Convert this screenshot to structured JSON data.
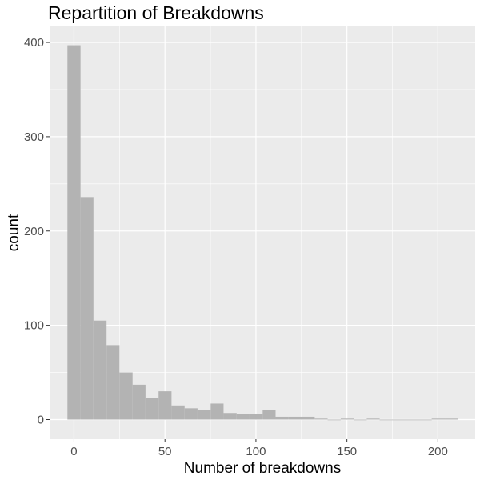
{
  "chart_data": {
    "type": "bar",
    "title": "Repartition of Breakdowns",
    "xlabel": "Number of breakdowns",
    "ylabel": "count",
    "bin_width": 7.15,
    "bins": [
      {
        "start": -3.6,
        "end": 3.6,
        "count": 397
      },
      {
        "start": 3.6,
        "end": 10.7,
        "count": 236
      },
      {
        "start": 10.7,
        "end": 17.9,
        "count": 105
      },
      {
        "start": 17.9,
        "end": 25.0,
        "count": 79
      },
      {
        "start": 25.0,
        "end": 32.2,
        "count": 50
      },
      {
        "start": 32.2,
        "end": 39.3,
        "count": 37
      },
      {
        "start": 39.3,
        "end": 46.5,
        "count": 23
      },
      {
        "start": 46.5,
        "end": 53.6,
        "count": 30
      },
      {
        "start": 53.6,
        "end": 60.8,
        "count": 15
      },
      {
        "start": 60.8,
        "end": 67.9,
        "count": 12
      },
      {
        "start": 67.9,
        "end": 75.1,
        "count": 10
      },
      {
        "start": 75.1,
        "end": 82.2,
        "count": 17
      },
      {
        "start": 82.2,
        "end": 89.4,
        "count": 7
      },
      {
        "start": 89.4,
        "end": 96.5,
        "count": 6
      },
      {
        "start": 96.5,
        "end": 103.7,
        "count": 6
      },
      {
        "start": 103.7,
        "end": 110.8,
        "count": 10
      },
      {
        "start": 110.8,
        "end": 118.0,
        "count": 3
      },
      {
        "start": 118.0,
        "end": 125.1,
        "count": 3
      },
      {
        "start": 125.1,
        "end": 132.3,
        "count": 3
      },
      {
        "start": 132.3,
        "end": 139.4,
        "count": 1
      },
      {
        "start": 139.4,
        "end": 146.6,
        "count": 0
      },
      {
        "start": 146.6,
        "end": 153.7,
        "count": 1
      },
      {
        "start": 153.7,
        "end": 160.9,
        "count": 0
      },
      {
        "start": 160.9,
        "end": 168.0,
        "count": 1
      },
      {
        "start": 168.0,
        "end": 175.2,
        "count": 0
      },
      {
        "start": 175.2,
        "end": 182.3,
        "count": 0
      },
      {
        "start": 182.3,
        "end": 189.5,
        "count": 0
      },
      {
        "start": 189.5,
        "end": 196.6,
        "count": 0
      },
      {
        "start": 196.6,
        "end": 203.8,
        "count": 1
      },
      {
        "start": 203.8,
        "end": 210.9,
        "count": 1
      }
    ],
    "xlim": [
      -13.4,
      220.5
    ],
    "ylim": [
      -20.8,
      417
    ],
    "x_ticks": [
      0,
      50,
      100,
      150,
      200
    ],
    "x_tick_labels": [
      "0",
      "50",
      "100",
      "150",
      "200"
    ],
    "y_ticks": [
      0,
      100,
      200,
      300,
      400
    ],
    "y_tick_labels": [
      "0",
      "100",
      "200",
      "300",
      "400"
    ],
    "x_minor_ticks": [
      25,
      75,
      125,
      175
    ],
    "y_minor_ticks": [
      50,
      150,
      250,
      350
    ],
    "grid": true,
    "legend": "none",
    "colors": {
      "panel_background": "#ebebeb",
      "grid_line": "#ffffff",
      "bar_fill": "#b3b3b3",
      "tick_label": "#4d4d4d"
    }
  }
}
